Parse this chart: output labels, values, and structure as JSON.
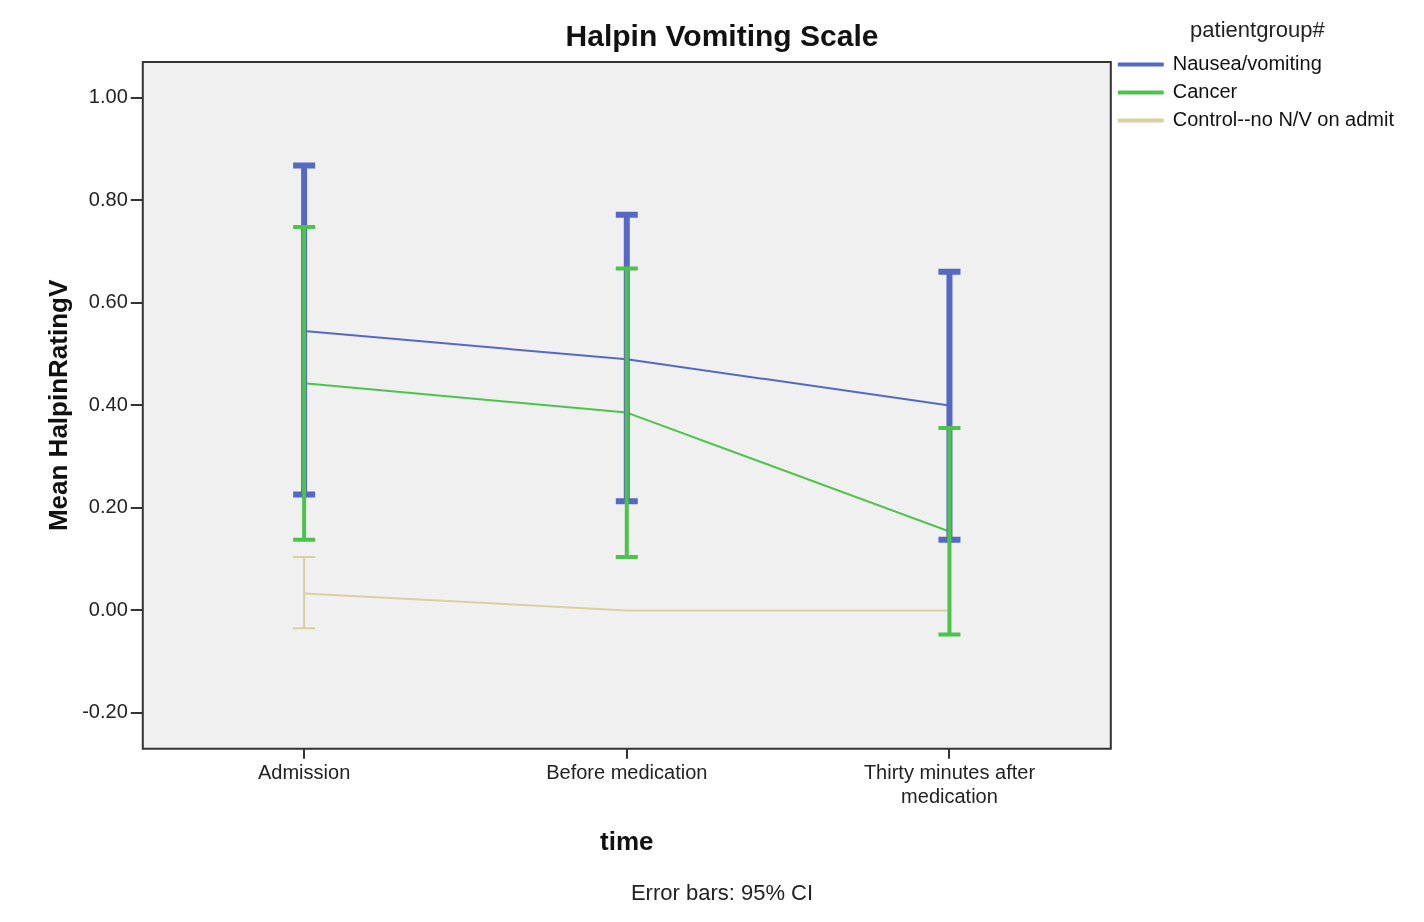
{
  "chart_data": {
    "type": "line",
    "title": "Halpin Vomiting Scale",
    "xlabel": "time",
    "ylabel": "Mean HalpinRatingV",
    "legend_title": "patientgroup#",
    "legend": "right",
    "grid": false,
    "marker": "none",
    "categories": [
      "Admission",
      "Before medication",
      "Thirty minutes after medication"
    ],
    "series": [
      {
        "name": "Nausea/vomiting",
        "color": "#5468c4",
        "values": [
          0.545,
          0.49,
          0.4
        ],
        "errors": [
          [
            0.226,
            0.868
          ],
          [
            0.213,
            0.772
          ],
          [
            0.138,
            0.661
          ]
        ]
      },
      {
        "name": "Cancer",
        "color": "#4cc44c",
        "values": [
          0.443,
          0.386,
          0.154
        ],
        "errors": [
          [
            0.138,
            0.748
          ],
          [
            0.104,
            0.667
          ],
          [
            -0.047,
            0.356
          ]
        ]
      },
      {
        "name": "Control--no N/V on admit",
        "color": "#d8d0a0",
        "values": [
          0.033,
          0,
          0
        ],
        "errors": [
          [
            -0.035,
            0.104
          ],
          null,
          null
        ]
      }
    ],
    "ylim": [
      -0.27,
      1.07
    ],
    "yticks": [
      {
        "value": -0.2,
        "label": "-0.20"
      },
      {
        "value": 0,
        "label": "0.00"
      },
      {
        "value": 0.2,
        "label": "0.20"
      },
      {
        "value": 0.4,
        "label": "0.40"
      },
      {
        "value": 0.6,
        "label": "0.60"
      },
      {
        "value": 0.8,
        "label": "0.80"
      },
      {
        "value": 1,
        "label": "1.00"
      }
    ],
    "annotations": [
      "Error bars: 95% CI"
    ]
  }
}
